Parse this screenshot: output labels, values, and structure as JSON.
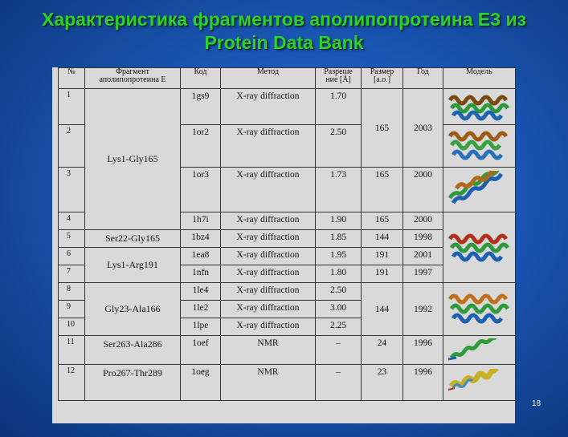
{
  "slide": {
    "title_line1": "Характеристика фрагментов аполипопротеина Е3 из",
    "title_line2": "Protein Data Bank",
    "page_number": "18"
  },
  "table": {
    "headers": {
      "num": "№",
      "fragment_l1": "Фрагмент",
      "fragment_l2": "аполипопротеина Е",
      "code": "Код",
      "method": "Метод",
      "resolution_l1": "Разреше",
      "resolution_l2": "ние [Å]",
      "size_l1": "Размер",
      "size_l2": "[а.о.]",
      "year": "Год",
      "model": "Модель"
    },
    "rows": [
      {
        "num": "1",
        "code": "1gs9",
        "method": "X-ray diffraction",
        "res": "1.70"
      },
      {
        "num": "2",
        "code": "1or2",
        "method": "X-ray diffraction",
        "res": "2.50"
      },
      {
        "num": "3",
        "code": "1or3",
        "method": "X-ray diffraction",
        "res": "1.73",
        "size": "165",
        "year": "2000"
      },
      {
        "num": "4",
        "code": "1h7i",
        "method": "X-ray diffraction",
        "res": "1.90",
        "size": "165",
        "year": "2000"
      },
      {
        "num": "5",
        "fragment": "Ser22-Gly165",
        "code": "1bz4",
        "method": "X-ray diffraction",
        "res": "1.85",
        "size": "144",
        "year": "1998"
      },
      {
        "num": "6",
        "code": "1ea8",
        "method": "X-ray diffraction",
        "res": "1.95",
        "size": "191",
        "year": "2001"
      },
      {
        "num": "7",
        "code": "1nfn",
        "method": "X-ray diffraction",
        "res": "1.80",
        "size": "191",
        "year": "1997"
      },
      {
        "num": "8",
        "code": "1le4",
        "method": "X-ray diffraction",
        "res": "2.50"
      },
      {
        "num": "9",
        "code": "1le2",
        "method": "X-ray diffraction",
        "res": "3.00"
      },
      {
        "num": "10",
        "code": "1lpe",
        "method": "X-ray diffraction",
        "res": "2.25"
      },
      {
        "num": "11",
        "fragment": "Ser263-Ala286",
        "code": "1oef",
        "method": "NMR",
        "res": "–",
        "size": "24",
        "year": "1996"
      },
      {
        "num": "12",
        "fragment": "Pro267-Thr289",
        "code": "1oeg",
        "method": "NMR",
        "res": "–",
        "size": "23",
        "year": "1996"
      }
    ],
    "merged": {
      "frag_1_4": "Lys1-Gly165",
      "size_1_2": "165",
      "year_1_2": "2003",
      "frag_6_7": "Lys1-Arg191",
      "frag_8_10": "Gly23-Ala166",
      "size_8_10": "144",
      "year_8_10": "1992"
    }
  }
}
